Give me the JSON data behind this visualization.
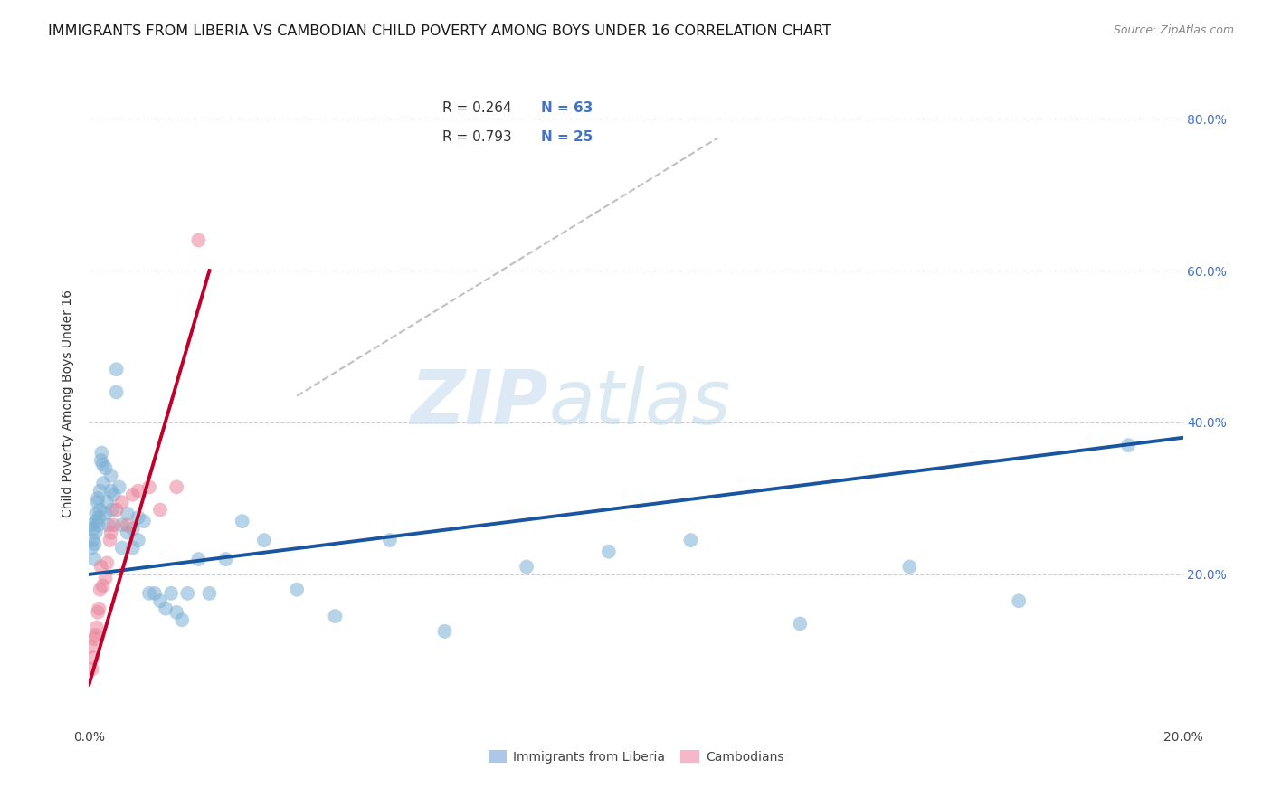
{
  "title": "IMMIGRANTS FROM LIBERIA VS CAMBODIAN CHILD POVERTY AMONG BOYS UNDER 16 CORRELATION CHART",
  "source": "Source: ZipAtlas.com",
  "ylabel_label": "Child Poverty Among Boys Under 16",
  "legend_entries": [
    {
      "label_r": "R = 0.264",
      "label_n": "N = 63",
      "color": "#aec6e8"
    },
    {
      "label_r": "R = 0.793",
      "label_n": "N = 25",
      "color": "#f4b8c8"
    }
  ],
  "bottom_legend": [
    "Immigrants from Liberia",
    "Cambodians"
  ],
  "watermark_zip": "ZIP",
  "watermark_atlas": "atlas",
  "blue_scatter_x": [
    0.0003,
    0.0005,
    0.0007,
    0.0008,
    0.001,
    0.001,
    0.0012,
    0.0013,
    0.0014,
    0.0015,
    0.0016,
    0.0017,
    0.0018,
    0.002,
    0.002,
    0.0022,
    0.0023,
    0.0025,
    0.0026,
    0.003,
    0.003,
    0.0033,
    0.0035,
    0.004,
    0.004,
    0.0042,
    0.0045,
    0.005,
    0.005,
    0.0055,
    0.006,
    0.006,
    0.007,
    0.007,
    0.008,
    0.008,
    0.009,
    0.009,
    0.01,
    0.011,
    0.012,
    0.013,
    0.014,
    0.015,
    0.016,
    0.017,
    0.018,
    0.02,
    0.022,
    0.025,
    0.028,
    0.032,
    0.038,
    0.045,
    0.055,
    0.065,
    0.08,
    0.095,
    0.11,
    0.13,
    0.15,
    0.17,
    0.19
  ],
  "blue_scatter_y": [
    0.265,
    0.235,
    0.245,
    0.26,
    0.22,
    0.24,
    0.255,
    0.28,
    0.27,
    0.295,
    0.3,
    0.265,
    0.275,
    0.285,
    0.31,
    0.35,
    0.36,
    0.345,
    0.32,
    0.34,
    0.28,
    0.295,
    0.265,
    0.33,
    0.31,
    0.285,
    0.305,
    0.44,
    0.47,
    0.315,
    0.265,
    0.235,
    0.28,
    0.255,
    0.26,
    0.235,
    0.275,
    0.245,
    0.27,
    0.175,
    0.175,
    0.165,
    0.155,
    0.175,
    0.15,
    0.14,
    0.175,
    0.22,
    0.175,
    0.22,
    0.27,
    0.245,
    0.18,
    0.145,
    0.245,
    0.125,
    0.21,
    0.23,
    0.245,
    0.135,
    0.21,
    0.165,
    0.37
  ],
  "pink_scatter_x": [
    0.0003,
    0.0005,
    0.0007,
    0.001,
    0.0012,
    0.0014,
    0.0016,
    0.0018,
    0.002,
    0.0022,
    0.0025,
    0.003,
    0.0033,
    0.0038,
    0.004,
    0.0045,
    0.005,
    0.006,
    0.007,
    0.008,
    0.009,
    0.011,
    0.013,
    0.016,
    0.02
  ],
  "pink_scatter_y": [
    0.105,
    0.075,
    0.09,
    0.115,
    0.12,
    0.13,
    0.15,
    0.155,
    0.18,
    0.21,
    0.185,
    0.195,
    0.215,
    0.245,
    0.255,
    0.265,
    0.285,
    0.295,
    0.265,
    0.305,
    0.31,
    0.315,
    0.285,
    0.315,
    0.64
  ],
  "blue_line_x": [
    0.0,
    0.2
  ],
  "blue_line_y": [
    0.2,
    0.38
  ],
  "pink_line_x": [
    0.0,
    0.022
  ],
  "pink_line_y": [
    0.055,
    0.6
  ],
  "diagonal_line_x": [
    0.038,
    0.115
  ],
  "diagonal_line_y": [
    0.435,
    0.775
  ],
  "xlim": [
    0.0,
    0.2
  ],
  "ylim": [
    0.0,
    0.85
  ],
  "yticks": [
    0.0,
    0.2,
    0.4,
    0.6,
    0.8
  ],
  "xticks": [
    0.0,
    0.2
  ],
  "scatter_size": 130,
  "scatter_alpha": 0.55,
  "blue_scatter_color": "#7bafd4",
  "pink_scatter_color": "#e8849a",
  "blue_line_color": "#1a56a0",
  "pink_line_color": "#c0002a",
  "diagonal_color": "#c0c0c0",
  "grid_color": "#c8c8c8",
  "background_color": "#ffffff",
  "title_fontsize": 11.5,
  "source_fontsize": 9,
  "axis_fontsize": 10,
  "legend_fontsize": 11
}
